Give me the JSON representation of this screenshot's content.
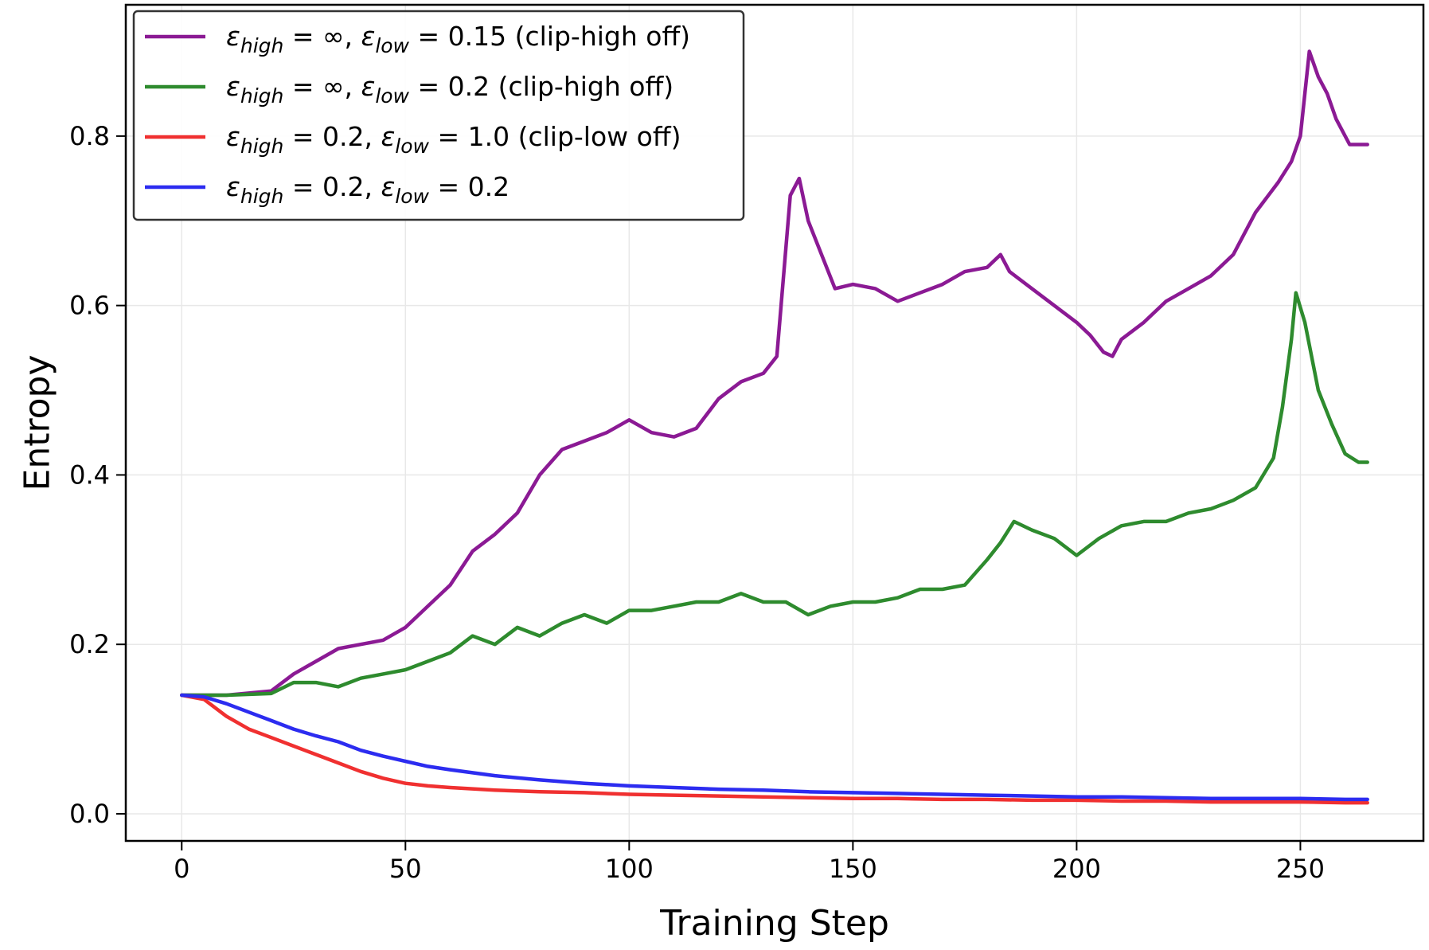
{
  "chart_data": {
    "type": "line",
    "title": "",
    "xlabel": "Training Step",
    "ylabel": "Entropy",
    "xlim": [
      -12.5,
      277.5
    ],
    "ylim": [
      -0.032,
      0.955
    ],
    "xticks": [
      0,
      50,
      100,
      150,
      200,
      250
    ],
    "xtick_labels": [
      "0",
      "50",
      "100",
      "150",
      "200",
      "250"
    ],
    "yticks": [
      0.0,
      0.2,
      0.4,
      0.6,
      0.8
    ],
    "ytick_labels": [
      "0.0",
      "0.2",
      "0.4",
      "0.6",
      "0.8"
    ],
    "grid": true,
    "legend_position": "top-left",
    "series": [
      {
        "name": "ε_high = ∞, ε_low = 0.15 (clip-high off)",
        "legend": {
          "eps": "ε",
          "high": "high",
          "eq1": " = ∞, ",
          "low": "low",
          "eq2": " = 0.15 (clip-high off)"
        },
        "color": "#8B1A94",
        "x": [
          0,
          10,
          20,
          25,
          30,
          35,
          40,
          45,
          50,
          55,
          60,
          65,
          70,
          75,
          80,
          85,
          90,
          95,
          100,
          105,
          110,
          115,
          120,
          125,
          130,
          133,
          136,
          138,
          140,
          143,
          146,
          150,
          155,
          160,
          165,
          170,
          175,
          180,
          183,
          185,
          190,
          195,
          200,
          203,
          206,
          208,
          210,
          215,
          220,
          225,
          230,
          235,
          240,
          245,
          248,
          250,
          252,
          254,
          256,
          258,
          261,
          265
        ],
        "values": [
          0.14,
          0.14,
          0.145,
          0.165,
          0.18,
          0.195,
          0.2,
          0.205,
          0.22,
          0.245,
          0.27,
          0.31,
          0.33,
          0.355,
          0.4,
          0.43,
          0.44,
          0.45,
          0.465,
          0.45,
          0.445,
          0.455,
          0.49,
          0.51,
          0.52,
          0.54,
          0.73,
          0.75,
          0.7,
          0.66,
          0.62,
          0.625,
          0.62,
          0.605,
          0.615,
          0.625,
          0.64,
          0.645,
          0.66,
          0.64,
          0.62,
          0.6,
          0.58,
          0.565,
          0.545,
          0.54,
          0.56,
          0.58,
          0.605,
          0.62,
          0.635,
          0.66,
          0.71,
          0.745,
          0.77,
          0.8,
          0.9,
          0.87,
          0.85,
          0.82,
          0.79,
          0.79
        ]
      },
      {
        "name": "ε_high = ∞, ε_low = 0.2 (clip-high off)",
        "legend": {
          "eps": "ε",
          "high": "high",
          "eq1": " = ∞, ",
          "low": "low",
          "eq2": " = 0.2 (clip-high off)"
        },
        "color": "#2E8B2E",
        "x": [
          0,
          10,
          20,
          25,
          30,
          35,
          40,
          45,
          50,
          55,
          60,
          65,
          70,
          75,
          80,
          85,
          90,
          95,
          100,
          105,
          110,
          115,
          120,
          125,
          130,
          135,
          140,
          145,
          150,
          155,
          160,
          165,
          170,
          175,
          180,
          183,
          186,
          190,
          195,
          200,
          205,
          210,
          215,
          220,
          225,
          230,
          235,
          240,
          244,
          246,
          248,
          249,
          251,
          254,
          257,
          260,
          263,
          265
        ],
        "values": [
          0.14,
          0.14,
          0.142,
          0.155,
          0.155,
          0.15,
          0.16,
          0.165,
          0.17,
          0.18,
          0.19,
          0.21,
          0.2,
          0.22,
          0.21,
          0.225,
          0.235,
          0.225,
          0.24,
          0.24,
          0.245,
          0.25,
          0.25,
          0.26,
          0.25,
          0.25,
          0.235,
          0.245,
          0.25,
          0.25,
          0.255,
          0.265,
          0.265,
          0.27,
          0.3,
          0.32,
          0.345,
          0.335,
          0.325,
          0.305,
          0.325,
          0.34,
          0.345,
          0.345,
          0.355,
          0.36,
          0.37,
          0.385,
          0.42,
          0.48,
          0.56,
          0.615,
          0.58,
          0.5,
          0.46,
          0.425,
          0.415,
          0.415
        ]
      },
      {
        "name": "ε_high = 0.2, ε_low = 1.0 (clip-low off)",
        "legend": {
          "eps": "ε",
          "high": "high",
          "eq1": " = 0.2, ",
          "low": "low",
          "eq2": " = 1.0 (clip-low off)"
        },
        "color": "#F03030",
        "x": [
          0,
          5,
          10,
          15,
          20,
          25,
          30,
          35,
          40,
          45,
          50,
          55,
          60,
          70,
          80,
          90,
          100,
          110,
          120,
          130,
          140,
          150,
          160,
          170,
          180,
          190,
          200,
          210,
          220,
          230,
          240,
          250,
          260,
          265
        ],
        "values": [
          0.14,
          0.135,
          0.115,
          0.1,
          0.09,
          0.08,
          0.07,
          0.06,
          0.05,
          0.042,
          0.036,
          0.033,
          0.031,
          0.028,
          0.026,
          0.025,
          0.023,
          0.022,
          0.021,
          0.02,
          0.019,
          0.018,
          0.018,
          0.017,
          0.017,
          0.016,
          0.016,
          0.015,
          0.015,
          0.014,
          0.014,
          0.014,
          0.013,
          0.013
        ]
      },
      {
        "name": "ε_high = 0.2, ε_low = 0.2",
        "legend": {
          "eps": "ε",
          "high": "high",
          "eq1": " = 0.2, ",
          "low": "low",
          "eq2": " = 0.2"
        },
        "color": "#2C2CF0",
        "x": [
          0,
          5,
          10,
          15,
          20,
          25,
          30,
          35,
          40,
          45,
          50,
          55,
          60,
          70,
          80,
          90,
          100,
          110,
          120,
          130,
          140,
          150,
          160,
          170,
          180,
          190,
          200,
          210,
          220,
          230,
          240,
          250,
          260,
          265
        ],
        "values": [
          0.14,
          0.138,
          0.13,
          0.12,
          0.11,
          0.1,
          0.092,
          0.085,
          0.075,
          0.068,
          0.062,
          0.056,
          0.052,
          0.045,
          0.04,
          0.036,
          0.033,
          0.031,
          0.029,
          0.028,
          0.026,
          0.025,
          0.024,
          0.023,
          0.022,
          0.021,
          0.02,
          0.02,
          0.019,
          0.018,
          0.018,
          0.018,
          0.017,
          0.017
        ]
      }
    ]
  }
}
